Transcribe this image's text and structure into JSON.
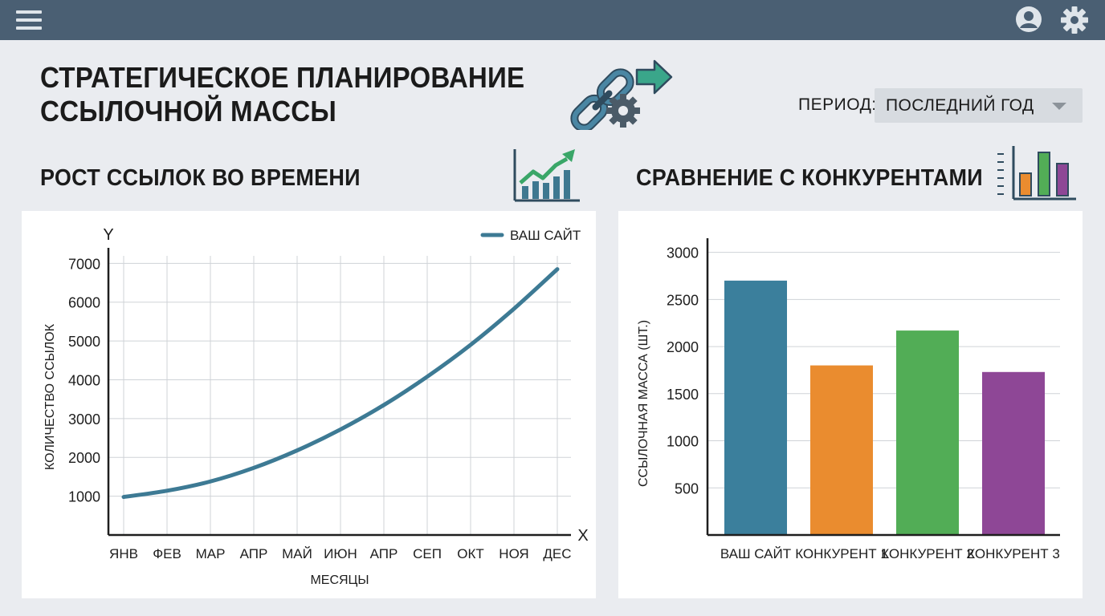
{
  "header": {
    "title_line1": "СТРАТЕГИЧЕСКОЕ ПЛАНИРОВАНИЕ",
    "title_line2": "ССЫЛОЧНОЙ МАССЫ",
    "icons": [
      "menu-icon",
      "user-icon",
      "gear-icon",
      "link-chain-icon",
      "arrow-right-icon"
    ]
  },
  "period": {
    "label": "ПЕРИОД:",
    "value": "ПОСЛЕДНИЙ ГОД"
  },
  "sections": {
    "growth_title": "РОСТ ССЫЛОК ВО ВРЕМЕНИ",
    "comparison_title": "СРАВНЕНИЕ С КОНКУРЕНТАМИ"
  },
  "colors": {
    "topbar": "#4a5f73",
    "line": "#3d7a94",
    "bar_site": "#3b7f9c",
    "bar_c1": "#ea8c2f",
    "bar_c2": "#52ad56",
    "bar_c3": "#8e4796"
  },
  "chart_data": [
    {
      "type": "line",
      "title": "РОСТ ССЫЛОК ВО ВРЕМЕНИ",
      "xlabel": "МЕСЯЦЫ",
      "ylabel": "КОЛИЧЕСТВО ССЫЛОК",
      "x_axis_letter": "X",
      "y_axis_letter": "Y",
      "categories": [
        "ЯНВ",
        "ФЕВ",
        "МАР",
        "АПР",
        "МАЙ",
        "ИЮН",
        "АПР",
        "СЕП",
        "ОКТ",
        "НОЯ",
        "ДЕС"
      ],
      "yticks": [
        1000,
        2000,
        3000,
        4000,
        5000,
        6000,
        7000
      ],
      "ylim": [
        0,
        7400
      ],
      "grid": true,
      "legend": "top-right",
      "series": [
        {
          "name": "ВАШ САЙТ",
          "values": [
            980,
            1140,
            1380,
            1730,
            2180,
            2720,
            3350,
            4080,
            4900,
            5830,
            6850
          ]
        }
      ]
    },
    {
      "type": "bar",
      "title": "СРАВНЕНИЕ С КОНКУРЕНТАМИ",
      "ylabel": "ССЫЛОЧНАЯ МАССА (ШТ.)",
      "categories": [
        "ВАШ САЙТ",
        "КОНКУРЕНТ 1",
        "КОНКУРЕНТ 2",
        "КОНКУРЕНТ 3"
      ],
      "values": [
        2700,
        1800,
        2170,
        1730
      ],
      "yticks": [
        500,
        1000,
        1500,
        2000,
        2500,
        3000
      ],
      "ylim": [
        0,
        3150
      ],
      "grid": true
    }
  ]
}
